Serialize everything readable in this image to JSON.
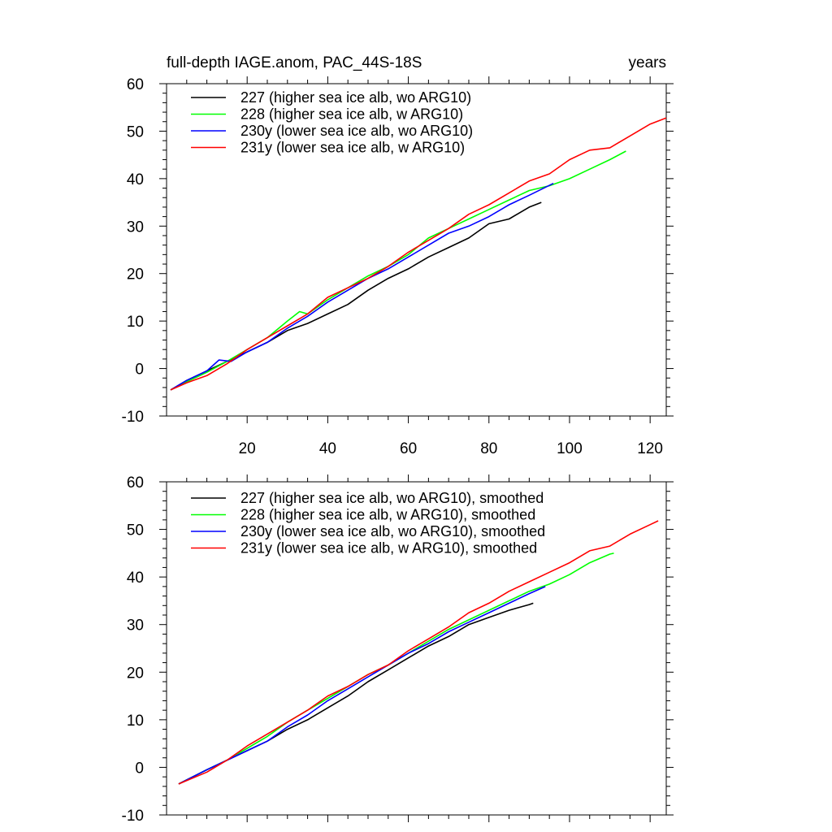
{
  "chart_data": [
    {
      "type": "line",
      "title": "full-depth IAGE.anom, PAC_44S-18S",
      "title_right": "years",
      "xlim": [
        0,
        124
      ],
      "ylim": [
        -10,
        60
      ],
      "x_ticks": [
        20,
        40,
        60,
        80,
        100,
        120
      ],
      "x_tick_labels": [
        "20",
        "40",
        "60",
        "80",
        "100",
        "120"
      ],
      "y_ticks": [
        -10,
        0,
        10,
        20,
        30,
        40,
        50,
        60
      ],
      "y_tick_labels": [
        "-10",
        "0",
        "10",
        "20",
        "30",
        "40",
        "50",
        "60"
      ],
      "grid": false,
      "legend_position": "top-left",
      "series": [
        {
          "name": "227 (higher sea ice alb, wo ARG10)",
          "color": "#000000",
          "x": [
            1,
            5,
            10,
            15,
            20,
            25,
            30,
            35,
            40,
            45,
            50,
            55,
            60,
            65,
            70,
            75,
            80,
            85,
            90,
            93
          ],
          "y": [
            -4.5,
            -2.5,
            -0.5,
            1.5,
            3.5,
            5.5,
            8.0,
            9.5,
            11.5,
            13.5,
            16.5,
            19.0,
            21.0,
            23.5,
            25.5,
            27.5,
            30.5,
            31.5,
            34.0,
            35.0
          ]
        },
        {
          "name": "228 (higher sea ice alb, w ARG10)",
          "color": "#00ff00",
          "x": [
            1,
            5,
            10,
            15,
            20,
            25,
            30,
            33,
            35,
            40,
            45,
            50,
            55,
            60,
            65,
            70,
            75,
            80,
            85,
            90,
            95,
            100,
            105,
            110,
            114
          ],
          "y": [
            -4.5,
            -2.8,
            -0.8,
            1.5,
            4.0,
            6.5,
            10.0,
            12.0,
            11.5,
            14.5,
            17.0,
            19.5,
            21.5,
            24.0,
            27.5,
            29.5,
            31.5,
            33.5,
            35.5,
            37.5,
            38.5,
            40.0,
            42.0,
            44.0,
            45.8
          ]
        },
        {
          "name": "230y (lower sea ice alb, wo ARG10)",
          "color": "#0000ff",
          "x": [
            1,
            5,
            10,
            13,
            16,
            20,
            25,
            30,
            35,
            40,
            45,
            50,
            55,
            60,
            65,
            70,
            75,
            80,
            85,
            90,
            96
          ],
          "y": [
            -4.5,
            -2.5,
            -0.5,
            1.8,
            1.5,
            3.5,
            5.5,
            8.5,
            11.0,
            14.0,
            16.5,
            19.0,
            21.0,
            23.5,
            26.0,
            28.5,
            30.0,
            32.0,
            34.5,
            36.5,
            39.0
          ]
        },
        {
          "name": "231y (lower sea ice alb, w ARG10)",
          "color": "#ff0000",
          "x": [
            1,
            5,
            10,
            15,
            20,
            25,
            30,
            35,
            40,
            45,
            50,
            55,
            60,
            65,
            70,
            75,
            80,
            85,
            90,
            95,
            100,
            105,
            110,
            115,
            120,
            124
          ],
          "y": [
            -4.5,
            -3.0,
            -1.5,
            1.0,
            4.0,
            6.5,
            9.0,
            11.5,
            15.0,
            17.0,
            19.0,
            21.5,
            24.5,
            27.0,
            29.5,
            32.5,
            34.5,
            37.0,
            39.5,
            41.0,
            44.0,
            46.0,
            46.5,
            49.0,
            51.5,
            52.8
          ]
        }
      ]
    },
    {
      "type": "line",
      "xlim": [
        0,
        124
      ],
      "ylim": [
        -10,
        60
      ],
      "y_ticks": [
        -10,
        0,
        10,
        20,
        30,
        40,
        50,
        60
      ],
      "y_tick_labels": [
        "-10",
        "0",
        "10",
        "20",
        "30",
        "40",
        "50",
        "60"
      ],
      "grid": false,
      "legend_position": "top-left",
      "series": [
        {
          "name": "227 (higher sea ice alb, wo ARG10), smoothed",
          "color": "#000000",
          "x": [
            3,
            10,
            15,
            20,
            25,
            30,
            35,
            40,
            45,
            50,
            55,
            60,
            65,
            70,
            75,
            80,
            85,
            90,
            91
          ],
          "y": [
            -3.5,
            -0.5,
            1.5,
            3.5,
            5.5,
            8.0,
            10.0,
            12.5,
            15.0,
            18.0,
            20.5,
            23.0,
            25.5,
            27.5,
            30.0,
            31.5,
            33.0,
            34.2,
            34.5
          ]
        },
        {
          "name": "228 (higher sea ice alb, w ARG10), smoothed",
          "color": "#00ff00",
          "x": [
            3,
            10,
            15,
            20,
            25,
            30,
            35,
            40,
            45,
            50,
            55,
            60,
            65,
            70,
            75,
            80,
            85,
            90,
            95,
            100,
            105,
            110,
            111
          ],
          "y": [
            -3.5,
            -0.5,
            1.5,
            4.0,
            6.5,
            9.5,
            12.0,
            14.5,
            17.0,
            19.5,
            21.5,
            24.0,
            26.5,
            29.0,
            31.0,
            33.0,
            35.0,
            37.0,
            38.5,
            40.5,
            43.0,
            44.8,
            45.0
          ]
        },
        {
          "name": "230y (lower sea ice alb, wo ARG10), smoothed",
          "color": "#0000ff",
          "x": [
            3,
            10,
            15,
            20,
            25,
            30,
            35,
            40,
            45,
            50,
            55,
            60,
            65,
            70,
            75,
            80,
            85,
            90,
            94
          ],
          "y": [
            -3.5,
            -0.5,
            1.5,
            3.5,
            5.5,
            8.5,
            11.0,
            14.0,
            16.5,
            19.0,
            21.5,
            24.0,
            26.0,
            28.5,
            30.5,
            32.5,
            34.5,
            36.5,
            38.0
          ]
        },
        {
          "name": "231y (lower sea ice alb, w ARG10), smoothed",
          "color": "#ff0000",
          "x": [
            3,
            10,
            15,
            20,
            25,
            30,
            35,
            40,
            45,
            50,
            55,
            60,
            65,
            70,
            75,
            80,
            85,
            90,
            95,
            100,
            105,
            110,
            115,
            120,
            122
          ],
          "y": [
            -3.5,
            -1.0,
            1.5,
            4.5,
            7.0,
            9.5,
            12.0,
            15.0,
            17.0,
            19.5,
            21.5,
            24.5,
            27.0,
            29.5,
            32.5,
            34.5,
            37.0,
            39.0,
            41.0,
            43.0,
            45.5,
            46.5,
            49.0,
            51.0,
            51.8
          ]
        }
      ]
    }
  ]
}
